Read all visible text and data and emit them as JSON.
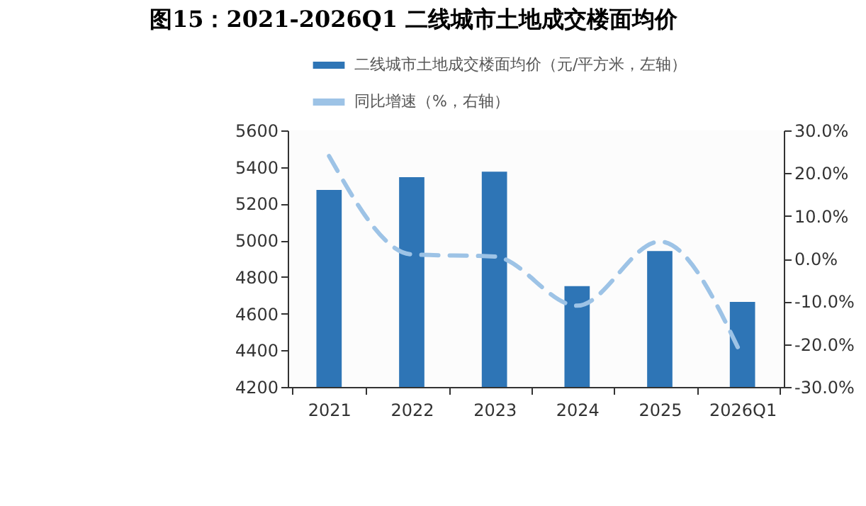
{
  "chart_data": {
    "type": "bar",
    "title": "图15：2021-2026Q1 二线城市土地成交楼面均价",
    "categories": [
      "2021",
      "2022",
      "2023",
      "2024",
      "2025",
      "2026Q1"
    ],
    "series": [
      {
        "name": "二线城市土地成交楼面均价（元/平方米，左轴）",
        "color": "#2e75b6",
        "values": [
          5275,
          5345,
          5375,
          4750,
          4942,
          4664
        ]
      },
      {
        "name": "同比增速（%，右轴）",
        "type": "line",
        "axis": "y2",
        "color": "#9dc3e6",
        "line_style": "dashed",
        "values": [
          24,
          1,
          0.5,
          -11,
          4,
          -23
        ]
      }
    ],
    "ylim": [
      4200,
      5600
    ],
    "yticks": [
      4200,
      4400,
      4600,
      4800,
      5000,
      5200,
      5400,
      5600
    ],
    "y2lim": [
      -30,
      30
    ],
    "y2ticks": [
      {
        "value": -30,
        "label": "-30.0%"
      },
      {
        "value": -20,
        "label": "-20.0%"
      },
      {
        "value": -10,
        "label": "-10.0%"
      },
      {
        "value": 0,
        "label": "0.0%"
      },
      {
        "value": 10,
        "label": "10.0%"
      },
      {
        "value": 20,
        "label": "20.0%"
      },
      {
        "value": 30,
        "label": "30.0%"
      }
    ],
    "legend": "top left",
    "grid": false
  }
}
